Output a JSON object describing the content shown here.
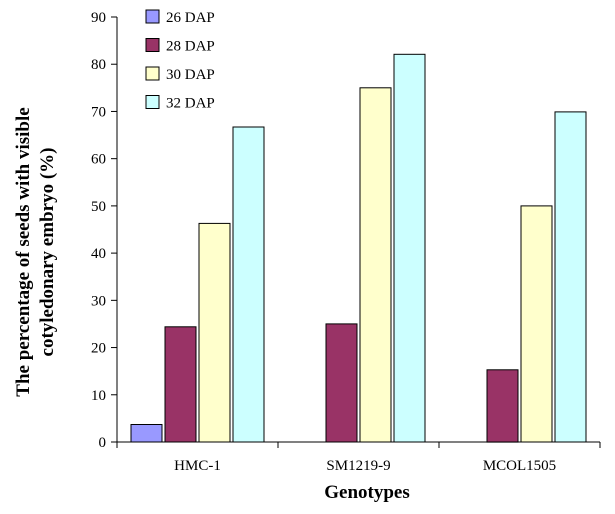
{
  "chart_data": {
    "type": "bar",
    "title": "",
    "xlabel": "Genotypes",
    "ylabel_lines": [
      "The percentage of seeds with visible",
      "cotyledonary embryo (%)"
    ],
    "categories": [
      "HMC-1",
      "SM1219-9",
      "MCOL1505"
    ],
    "series": [
      {
        "name": "26 DAP",
        "color": "#9999ff",
        "values": [
          3.7,
          0,
          0
        ]
      },
      {
        "name": "28 DAP",
        "color": "#993366",
        "values": [
          24.4,
          25,
          15.3
        ]
      },
      {
        "name": "30 DAP",
        "color": "#ffffcc",
        "values": [
          46.3,
          75,
          50
        ]
      },
      {
        "name": "32 DAP",
        "color": "#ccffff",
        "values": [
          66.7,
          82.1,
          69.9
        ]
      }
    ],
    "ylim": [
      0,
      90
    ],
    "yticks": [
      0,
      10,
      20,
      30,
      40,
      50,
      60,
      70,
      80,
      90
    ],
    "grid": false,
    "legend_position": "top-left"
  }
}
